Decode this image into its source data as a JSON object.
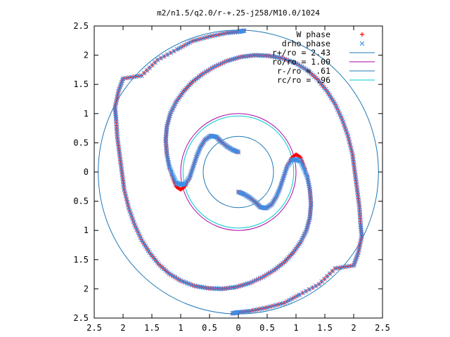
{
  "chart_data": {
    "type": "scatter",
    "title": "m2/n1.5/q2.0/r-+.25-j258/M10.0/1024",
    "xlim": [
      -2.5,
      2.5
    ],
    "ylim": [
      -2.5,
      2.5
    ],
    "xticks": [
      -2.5,
      -2,
      -1.5,
      -1,
      -0.5,
      0,
      0.5,
      1,
      1.5,
      2,
      2.5
    ],
    "yticks": [
      -2.5,
      -2,
      -1.5,
      -1,
      -0.5,
      0,
      0.5,
      1,
      1.5,
      2,
      2.5
    ],
    "xtick_labels": [
      "2.5",
      "2",
      "1.5",
      "1",
      "0.5",
      "0",
      "0.5",
      "1",
      "1.5",
      "2",
      "2.5"
    ],
    "ytick_labels": [
      "2.5",
      "2",
      "1.5",
      "1",
      "0.5",
      "0",
      "0.5",
      "1",
      "1.5",
      "2",
      "2.5"
    ],
    "grid": false,
    "legend_position": "top-right",
    "series": [
      {
        "name": "W phase",
        "marker": "plus",
        "color": "#ff0000",
        "arms": [
          [
            [
              0.0,
              0.34
            ],
            [
              -0.1,
              0.38
            ],
            [
              -0.2,
              0.44
            ],
            [
              -0.3,
              0.52
            ],
            [
              -0.38,
              0.6
            ],
            [
              -0.48,
              0.62
            ],
            [
              -0.58,
              0.55
            ],
            [
              -0.66,
              0.42
            ],
            [
              -0.72,
              0.28
            ],
            [
              -0.78,
              0.1
            ],
            [
              -0.84,
              -0.08
            ],
            [
              -0.92,
              -0.24
            ],
            [
              -1.0,
              -0.3
            ],
            [
              -1.08,
              -0.25
            ],
            [
              -1.14,
              -0.1
            ],
            [
              -1.2,
              0.1
            ],
            [
              -1.24,
              0.3
            ],
            [
              -1.26,
              0.55
            ],
            [
              -1.24,
              0.78
            ],
            [
              -1.18,
              1.0
            ],
            [
              -1.08,
              1.2
            ],
            [
              -0.95,
              1.38
            ],
            [
              -0.8,
              1.54
            ],
            [
              -0.62,
              1.68
            ],
            [
              -0.42,
              1.8
            ],
            [
              -0.2,
              1.9
            ],
            [
              0.04,
              1.97
            ],
            [
              0.28,
              2.0
            ],
            [
              0.52,
              1.99
            ],
            [
              0.76,
              1.95
            ],
            [
              1.0,
              1.86
            ],
            [
              1.2,
              1.74
            ],
            [
              1.38,
              1.58
            ],
            [
              1.54,
              1.38
            ],
            [
              1.68,
              1.16
            ],
            [
              1.8,
              0.9
            ],
            [
              1.9,
              0.62
            ],
            [
              1.98,
              0.3
            ],
            [
              2.02,
              0.0
            ],
            [
              2.06,
              -0.3
            ],
            [
              2.1,
              -0.6
            ],
            [
              2.12,
              -0.9
            ],
            [
              2.14,
              -1.1
            ],
            [
              2.08,
              -1.38
            ],
            [
              2.0,
              -1.6
            ],
            [
              1.68,
              -1.65
            ],
            [
              1.4,
              -1.92
            ],
            [
              1.06,
              -2.1
            ],
            [
              0.8,
              -2.24
            ],
            [
              0.5,
              -2.32
            ],
            [
              0.2,
              -2.38
            ],
            [
              0.0,
              -2.4
            ],
            [
              -0.1,
              -2.42
            ]
          ],
          [
            [
              0.0,
              -0.34
            ],
            [
              0.1,
              -0.38
            ],
            [
              0.2,
              -0.44
            ],
            [
              0.3,
              -0.52
            ],
            [
              0.38,
              -0.6
            ],
            [
              0.48,
              -0.62
            ],
            [
              0.58,
              -0.55
            ],
            [
              0.66,
              -0.42
            ],
            [
              0.72,
              -0.28
            ],
            [
              0.78,
              -0.1
            ],
            [
              0.84,
              0.08
            ],
            [
              0.92,
              0.24
            ],
            [
              1.0,
              0.3
            ],
            [
              1.08,
              0.25
            ],
            [
              1.14,
              0.1
            ],
            [
              1.2,
              -0.1
            ],
            [
              1.24,
              -0.3
            ],
            [
              1.26,
              -0.55
            ],
            [
              1.24,
              -0.78
            ],
            [
              1.18,
              -1.0
            ],
            [
              1.08,
              -1.2
            ],
            [
              0.95,
              -1.38
            ],
            [
              0.8,
              -1.54
            ],
            [
              0.62,
              -1.68
            ],
            [
              0.42,
              -1.8
            ],
            [
              0.2,
              -1.9
            ],
            [
              -0.04,
              -1.97
            ],
            [
              -0.28,
              -2.0
            ],
            [
              -0.52,
              -1.99
            ],
            [
              -0.76,
              -1.95
            ],
            [
              -1.0,
              -1.86
            ],
            [
              -1.2,
              -1.74
            ],
            [
              -1.38,
              -1.58
            ],
            [
              -1.54,
              -1.38
            ],
            [
              -1.68,
              -1.16
            ],
            [
              -1.8,
              -0.9
            ],
            [
              -1.9,
              -0.62
            ],
            [
              -1.98,
              -0.3
            ],
            [
              -2.02,
              0.0
            ],
            [
              -2.06,
              0.3
            ],
            [
              -2.1,
              0.6
            ],
            [
              -2.12,
              0.9
            ],
            [
              -2.14,
              1.1
            ],
            [
              -2.08,
              1.38
            ],
            [
              -2.0,
              1.6
            ],
            [
              -1.68,
              1.65
            ],
            [
              -1.4,
              1.92
            ],
            [
              -1.06,
              2.1
            ],
            [
              -0.8,
              2.24
            ],
            [
              -0.5,
              2.32
            ],
            [
              -0.2,
              2.38
            ],
            [
              0.0,
              2.4
            ],
            [
              0.1,
              2.42
            ]
          ]
        ]
      },
      {
        "name": "drho phase",
        "marker": "x",
        "color": "#3a8ee8",
        "arms": [
          [
            [
              0.0,
              0.34
            ],
            [
              -0.1,
              0.38
            ],
            [
              -0.2,
              0.44
            ],
            [
              -0.3,
              0.52
            ],
            [
              -0.38,
              0.6
            ],
            [
              -0.48,
              0.62
            ],
            [
              -0.58,
              0.55
            ],
            [
              -0.66,
              0.42
            ],
            [
              -0.72,
              0.28
            ],
            [
              -0.78,
              0.1
            ],
            [
              -0.84,
              -0.08
            ],
            [
              -0.92,
              -0.2
            ],
            [
              -1.0,
              -0.22
            ],
            [
              -1.08,
              -0.18
            ],
            [
              -1.14,
              -0.05
            ],
            [
              -1.2,
              0.1
            ],
            [
              -1.24,
              0.3
            ],
            [
              -1.26,
              0.55
            ],
            [
              -1.24,
              0.78
            ],
            [
              -1.18,
              1.0
            ],
            [
              -1.08,
              1.2
            ],
            [
              -0.95,
              1.38
            ],
            [
              -0.8,
              1.54
            ],
            [
              -0.62,
              1.68
            ],
            [
              -0.42,
              1.8
            ],
            [
              -0.2,
              1.9
            ],
            [
              0.04,
              1.97
            ],
            [
              0.28,
              2.0
            ],
            [
              0.52,
              1.99
            ],
            [
              0.76,
              1.95
            ],
            [
              1.0,
              1.86
            ],
            [
              1.2,
              1.74
            ],
            [
              1.38,
              1.58
            ],
            [
              1.54,
              1.38
            ],
            [
              1.68,
              1.16
            ],
            [
              1.8,
              0.9
            ],
            [
              1.9,
              0.62
            ],
            [
              1.98,
              0.3
            ],
            [
              2.02,
              0.0
            ],
            [
              2.06,
              -0.3
            ],
            [
              2.1,
              -0.6
            ],
            [
              2.12,
              -0.9
            ],
            [
              2.14,
              -1.1
            ],
            [
              2.08,
              -1.38
            ],
            [
              2.0,
              -1.6
            ],
            [
              1.68,
              -1.65
            ],
            [
              1.4,
              -1.92
            ],
            [
              1.06,
              -2.1
            ],
            [
              0.8,
              -2.24
            ],
            [
              0.5,
              -2.32
            ],
            [
              0.2,
              -2.38
            ],
            [
              0.0,
              -2.4
            ],
            [
              -0.1,
              -2.42
            ]
          ],
          [
            [
              0.0,
              -0.34
            ],
            [
              0.1,
              -0.38
            ],
            [
              0.2,
              -0.44
            ],
            [
              0.3,
              -0.52
            ],
            [
              0.38,
              -0.6
            ],
            [
              0.48,
              -0.62
            ],
            [
              0.58,
              -0.55
            ],
            [
              0.66,
              -0.42
            ],
            [
              0.72,
              -0.28
            ],
            [
              0.78,
              -0.1
            ],
            [
              0.84,
              0.08
            ],
            [
              0.92,
              0.2
            ],
            [
              1.0,
              0.22
            ],
            [
              1.08,
              0.18
            ],
            [
              1.14,
              0.05
            ],
            [
              1.2,
              -0.1
            ],
            [
              1.24,
              -0.3
            ],
            [
              1.26,
              -0.55
            ],
            [
              1.24,
              -0.78
            ],
            [
              1.18,
              -1.0
            ],
            [
              1.08,
              -1.2
            ],
            [
              0.95,
              -1.38
            ],
            [
              0.8,
              -1.54
            ],
            [
              0.62,
              -1.68
            ],
            [
              0.42,
              -1.8
            ],
            [
              0.2,
              -1.9
            ],
            [
              -0.04,
              -1.97
            ],
            [
              -0.28,
              -2.0
            ],
            [
              -0.52,
              -1.99
            ],
            [
              -0.76,
              -1.95
            ],
            [
              -1.0,
              -1.86
            ],
            [
              -1.2,
              -1.74
            ],
            [
              -1.38,
              -1.58
            ],
            [
              -1.54,
              -1.38
            ],
            [
              -1.68,
              -1.16
            ],
            [
              -1.8,
              -0.9
            ],
            [
              -1.9,
              -0.62
            ],
            [
              -1.98,
              -0.3
            ],
            [
              -2.02,
              0.0
            ],
            [
              -2.06,
              0.3
            ],
            [
              -2.1,
              0.6
            ],
            [
              -2.12,
              0.9
            ],
            [
              -2.14,
              1.1
            ],
            [
              -2.08,
              1.38
            ],
            [
              -2.0,
              1.6
            ],
            [
              -1.68,
              1.65
            ],
            [
              -1.4,
              1.92
            ],
            [
              -1.06,
              2.1
            ],
            [
              -0.8,
              2.24
            ],
            [
              -0.5,
              2.32
            ],
            [
              -0.2,
              2.38
            ],
            [
              0.0,
              2.4
            ],
            [
              0.1,
              2.42
            ]
          ]
        ]
      },
      {
        "name": "r+/ro = 2.43",
        "marker": "line",
        "color": "#1f77b4",
        "radius": 2.43
      },
      {
        "name": "ro/ro = 1.00",
        "marker": "line",
        "color": "#aa00aa",
        "radius": 1.0
      },
      {
        "name": "r-/ro = .61",
        "marker": "line",
        "color": "#1f77b4",
        "radius": 0.61
      },
      {
        "name": "rc/ro = .96",
        "marker": "line",
        "color": "#00cccc",
        "radius": 0.96
      }
    ]
  }
}
